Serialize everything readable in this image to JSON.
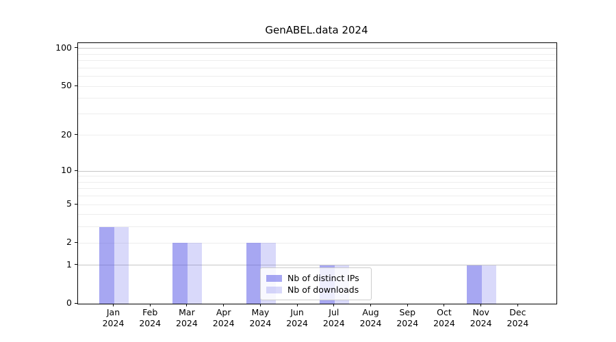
{
  "title": "GenABEL.data 2024",
  "chart_data": {
    "type": "bar",
    "title": "GenABEL.data 2024",
    "xlabel": "",
    "ylabel": "",
    "scale": "log1p",
    "categories": [
      "Jan",
      "Feb",
      "Mar",
      "Apr",
      "May",
      "Jun",
      "Jul",
      "Aug",
      "Sep",
      "Oct",
      "Nov",
      "Dec"
    ],
    "year": "2024",
    "series": [
      {
        "name": "Nb of distinct IPs",
        "color": "rgba(80,80,230,0.5)",
        "values": [
          3,
          0,
          2,
          0,
          2,
          0,
          1,
          0,
          0,
          0,
          1,
          0
        ]
      },
      {
        "name": "Nb of downloads",
        "color": "rgba(80,80,230,0.22)",
        "values": [
          3,
          0,
          2,
          0,
          2,
          0,
          1,
          0,
          0,
          0,
          1,
          0
        ]
      }
    ],
    "yticks": [
      0,
      1,
      2,
      5,
      10,
      20,
      50,
      100
    ],
    "ylim": [
      0,
      110
    ],
    "major_gridlines": [
      1,
      10,
      100
    ],
    "minor_gridlines": [
      2,
      3,
      4,
      5,
      6,
      7,
      8,
      9,
      20,
      30,
      40,
      50,
      60,
      70,
      80,
      90
    ],
    "grid": true,
    "legend_position": "lower center"
  },
  "colors": {
    "grid_major": "#c6c6c6",
    "grid_minor": "#ededed",
    "spine": "#000000",
    "text": "#000000",
    "legend_border": "#cccccc",
    "legend_bg": "rgba(255,255,255,0.8)"
  }
}
